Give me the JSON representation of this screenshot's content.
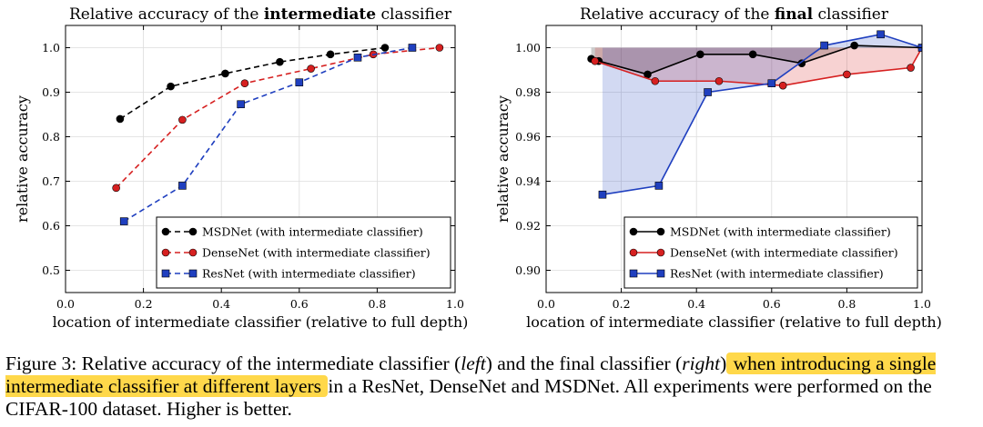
{
  "chart_data": [
    {
      "type": "line",
      "title_parts": [
        "Relative accuracy of the ",
        "intermediate",
        " classifier"
      ],
      "xlabel": "location of intermediate classifier (relative to full depth)",
      "ylabel": "relative accuracy",
      "xlim": [
        0.0,
        1.0
      ],
      "ylim": [
        0.45,
        1.05
      ],
      "xticks": [
        "0.0",
        "0.2",
        "0.4",
        "0.6",
        "0.8",
        "1.0"
      ],
      "yticks": [
        "0.5",
        "0.6",
        "0.7",
        "0.8",
        "0.9",
        "1.0"
      ],
      "xtick_values": [
        0.0,
        0.2,
        0.4,
        0.6,
        0.8,
        1.0
      ],
      "ytick_values": [
        0.5,
        0.6,
        0.7,
        0.8,
        0.9,
        1.0
      ],
      "grid": true,
      "legend": "bottom-right",
      "series": [
        {
          "name": "MSDNet (with intermediate classifier)",
          "color": "#000000",
          "marker": "circle",
          "line": "dashed",
          "x": [
            0.14,
            0.27,
            0.41,
            0.55,
            0.68,
            0.82
          ],
          "y": [
            0.84,
            0.913,
            0.942,
            0.968,
            0.985,
            1.0
          ]
        },
        {
          "name": "DenseNet (with intermediate classifier)",
          "color": "#d62020",
          "marker": "circle",
          "line": "dashed",
          "x": [
            0.13,
            0.3,
            0.46,
            0.63,
            0.79,
            0.96
          ],
          "y": [
            0.685,
            0.838,
            0.92,
            0.953,
            0.985,
            1.0
          ]
        },
        {
          "name": "ResNet (with intermediate classifier)",
          "color": "#1f3fbf",
          "marker": "square",
          "line": "dashed",
          "x": [
            0.15,
            0.3,
            0.45,
            0.6,
            0.75,
            0.89
          ],
          "y": [
            0.61,
            0.69,
            0.873,
            0.922,
            0.978,
            1.0
          ]
        }
      ]
    },
    {
      "type": "line",
      "title_parts": [
        "Relative accuracy of the ",
        "final",
        " classifier"
      ],
      "xlabel": "location of intermediate classifier (relative to full depth)",
      "ylabel": "relative accuracy",
      "xlim": [
        0.0,
        1.0
      ],
      "ylim": [
        0.89,
        1.01
      ],
      "xticks": [
        "0.0",
        "0.2",
        "0.4",
        "0.6",
        "0.8",
        "1.0"
      ],
      "yticks": [
        "0.90",
        "0.92",
        "0.94",
        "0.96",
        "0.98",
        "1.00"
      ],
      "xtick_values": [
        0.0,
        0.2,
        0.4,
        0.6,
        0.8,
        1.0
      ],
      "ytick_values": [
        0.9,
        0.92,
        0.94,
        0.96,
        0.98,
        1.0
      ],
      "grid": true,
      "legend": "bottom-right",
      "shaded_regions_to_baseline": 1.0,
      "series": [
        {
          "name": "MSDNet (with intermediate classifier)",
          "color": "#000000",
          "marker": "circle",
          "line": "solid",
          "x": [
            0.12,
            0.14,
            0.27,
            0.41,
            0.55,
            0.68,
            0.82,
            1.0
          ],
          "y": [
            0.995,
            0.994,
            0.988,
            0.997,
            0.997,
            0.993,
            1.001,
            1.0
          ]
        },
        {
          "name": "DenseNet (with intermediate classifier)",
          "color": "#d62020",
          "marker": "circle",
          "line": "solid",
          "x": [
            0.13,
            0.29,
            0.46,
            0.63,
            0.8,
            0.97,
            1.0
          ],
          "y": [
            0.994,
            0.985,
            0.985,
            0.983,
            0.988,
            0.991,
            1.0
          ]
        },
        {
          "name": "ResNet (with intermediate classifier)",
          "color": "#1f3fbf",
          "marker": "square",
          "line": "solid",
          "x": [
            0.15,
            0.3,
            0.43,
            0.6,
            0.74,
            0.89,
            1.0
          ],
          "y": [
            0.934,
            0.938,
            0.98,
            0.984,
            1.001,
            1.006,
            1.0
          ]
        }
      ]
    }
  ],
  "caption": {
    "label": "Figure 3:",
    "part1": " Relative accuracy of the intermediate classifier (",
    "left": "left",
    "part2": ") and the final classifier (",
    "right": "right",
    "part3": ")",
    "highlight": " when introducing a single intermediate classifier at different layers ",
    "part4": "in a ResNet, DenseNet and MSDNet. All experiments were performed on the CIFAR-100 dataset. Higher is better."
  }
}
